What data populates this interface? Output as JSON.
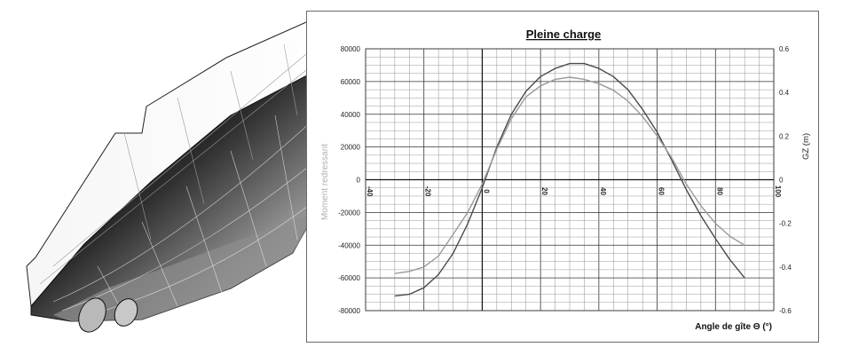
{
  "chart_data": {
    "type": "line",
    "title": "Pleine charge",
    "xlabel": "Angle de gîte Θ (°)",
    "ylabel_left": "Moment redressant",
    "ylabel_right": "GZ (m)",
    "xlim": [
      -40,
      100
    ],
    "ylim_left": [
      -80000,
      80000
    ],
    "ylim_right": [
      -0.6,
      0.6
    ],
    "x_ticks": [
      -40,
      -20,
      0,
      20,
      40,
      60,
      80,
      100
    ],
    "y_left_ticks": [
      80000,
      60000,
      40000,
      20000,
      0,
      -20000,
      -40000,
      -60000,
      -80000
    ],
    "y_right_ticks": [
      0.6,
      0.4,
      0.2,
      0,
      -0.2,
      -0.4,
      -0.6
    ],
    "grid": true,
    "series": [
      {
        "axis": "left",
        "color": "#4a4a4a",
        "x": [
          -30,
          -25,
          -20,
          -15,
          -10,
          -5,
          0,
          5,
          10,
          15,
          20,
          25,
          30,
          35,
          40,
          45,
          50,
          55,
          60,
          65,
          70,
          75,
          80,
          85,
          90
        ],
        "y": [
          -71000,
          -70000,
          -66000,
          -58000,
          -45000,
          -27000,
          -5000,
          20000,
          40000,
          54000,
          63000,
          68000,
          71000,
          71000,
          68000,
          63000,
          55000,
          43000,
          29000,
          12000,
          -6000,
          -22000,
          -36000,
          -49000,
          -60000
        ]
      },
      {
        "axis": "right",
        "color": "#9a9a9a",
        "x": [
          -30,
          -25,
          -20,
          -15,
          -10,
          -5,
          0,
          5,
          10,
          15,
          20,
          25,
          30,
          35,
          40,
          45,
          50,
          55,
          60,
          65,
          70,
          75,
          80,
          85,
          90
        ],
        "y": [
          -0.43,
          -0.42,
          -0.4,
          -0.35,
          -0.25,
          -0.15,
          -0.02,
          0.14,
          0.28,
          0.38,
          0.43,
          0.46,
          0.47,
          0.46,
          0.44,
          0.41,
          0.36,
          0.29,
          0.2,
          0.1,
          -0.02,
          -0.12,
          -0.2,
          -0.26,
          -0.3
        ]
      }
    ]
  }
}
